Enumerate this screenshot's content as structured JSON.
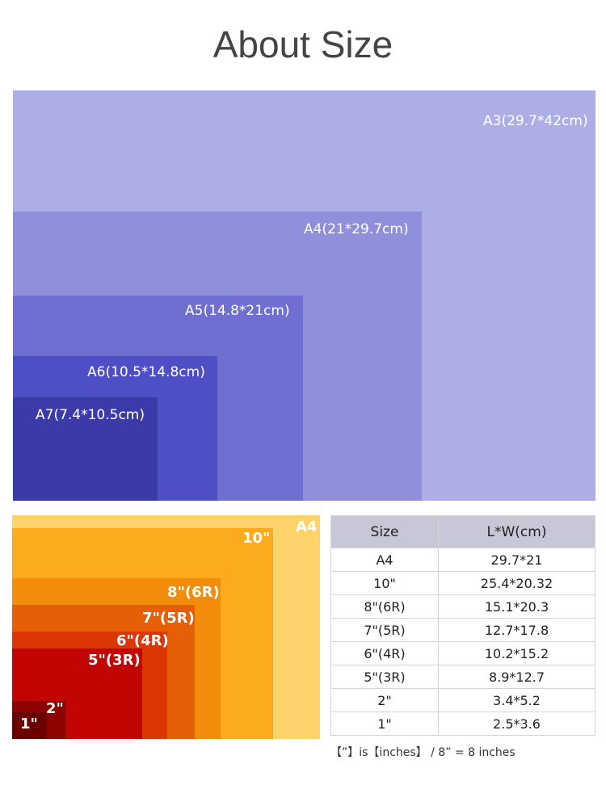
{
  "title": "About Size",
  "a_sizes": [
    {
      "label": "A3(29.7*42cm)",
      "color": "#aeaee6"
    },
    {
      "label": "A4(21*29.7cm)",
      "color": "#8f8fdb"
    },
    {
      "label": "A5(14.8*21cm)",
      "color": "#6f6fd1"
    },
    {
      "label": "A6(10.5*14.8cm)",
      "color": "#4f4fc5"
    },
    {
      "label": "A7(7.4*10.5cm)",
      "color": "#3a3aa8"
    }
  ],
  "photo_sizes": [
    {
      "label": "A4",
      "color": "#fdd36a"
    },
    {
      "label": "10\"",
      "color": "#fdab1e"
    },
    {
      "label": "8\"(6R)",
      "color": "#f28c0b"
    },
    {
      "label": "7\"(5R)",
      "color": "#e65e05"
    },
    {
      "label": "6\"(4R)",
      "color": "#dc3605"
    },
    {
      "label": "5\"(3R)",
      "color": "#c00502"
    },
    {
      "label": "2\"",
      "color": "#8e0200"
    },
    {
      "label": "1\"",
      "color": "#6b0000"
    }
  ],
  "table": {
    "headers": [
      "Size",
      "L*W(cm)"
    ],
    "rows": [
      [
        "A4",
        "29.7*21"
      ],
      [
        "10\"",
        "25.4*20.32"
      ],
      [
        "8\"(6R)",
        "15.1*20.3"
      ],
      [
        "7\"(5R)",
        "12.7*17.8"
      ],
      [
        "6\"(4R)",
        "10.2*15.2"
      ],
      [
        "5\"(3R)",
        "8.9*12.7"
      ],
      [
        "2\"",
        "3.4*5.2"
      ],
      [
        "1\"",
        "2.5*3.6"
      ]
    ]
  },
  "note": "【”】is【inches】 / 8” = 8 inches"
}
